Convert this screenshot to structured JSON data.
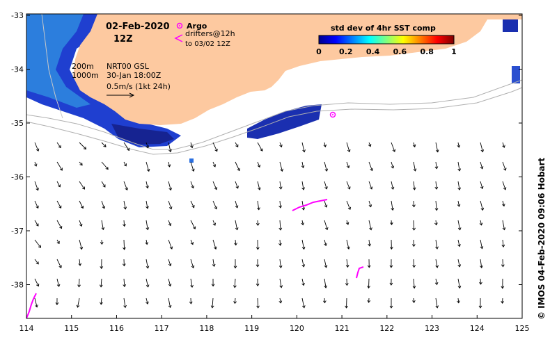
{
  "map": {
    "date_label": "02-Feb-2020",
    "time_label": "12Z",
    "legend_argo": "Argo",
    "legend_drifters": "drifters@12h",
    "legend_drifters_to": "to 03/02 12Z",
    "contour_200": "200m",
    "contour_1000": "1000m",
    "product": "NRT00 GSL",
    "product_time": "30-Jan 18:00Z",
    "scale_label": "0.5m/s (1kt 24h)",
    "colorbar_title": "std dev of 4hr SST comp",
    "colorbar_ticks": [
      "0",
      "0.2",
      "0.4",
      "0.6",
      "0.8",
      "1"
    ],
    "credit": "© IMOS 04-Feb-2020 09:06 Hobart",
    "colors": {
      "land": "#fdc9a0",
      "argo": "#ff00ff",
      "drifter": "#ff00ff"
    }
  },
  "axes": {
    "x_ticks": [
      "114",
      "115",
      "116",
      "117",
      "118",
      "119",
      "120",
      "121",
      "122",
      "123",
      "124",
      "125"
    ],
    "y_ticks": [
      "-33",
      "-34",
      "-35",
      "-36",
      "-37",
      "-38"
    ]
  }
}
